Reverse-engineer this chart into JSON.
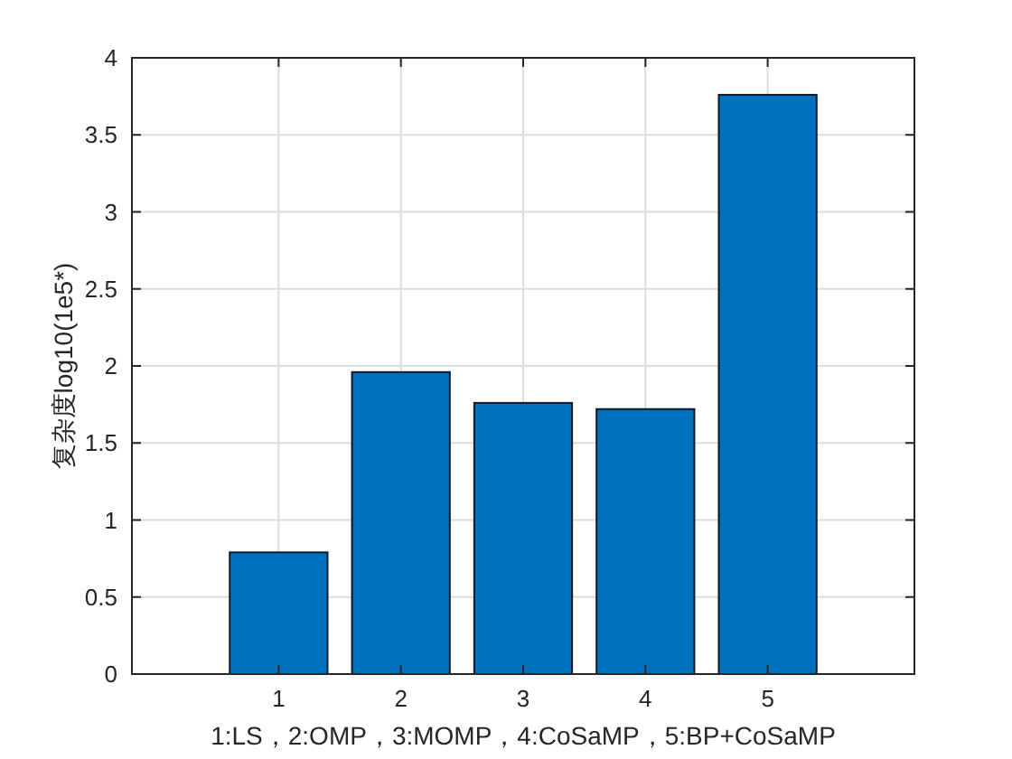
{
  "chart_data": {
    "type": "bar",
    "xlabel": "1:LS，2:OMP，3:MOMP，4:CoSaMP，5:BP+CoSaMP",
    "ylabel": "复杂度log10(1e5*)",
    "x": [
      1,
      2,
      3,
      4,
      5
    ],
    "values": [
      0.79,
      1.96,
      1.76,
      1.72,
      3.76
    ],
    "color": "#0072bd",
    "xlim": [
      -0.2,
      6.2
    ],
    "xticks": [
      1,
      2,
      3,
      4,
      5
    ],
    "ylim": [
      0,
      4
    ],
    "yticks": [
      0,
      0.5,
      1,
      1.5,
      2,
      2.5,
      3,
      3.5,
      4
    ],
    "grid": true
  }
}
